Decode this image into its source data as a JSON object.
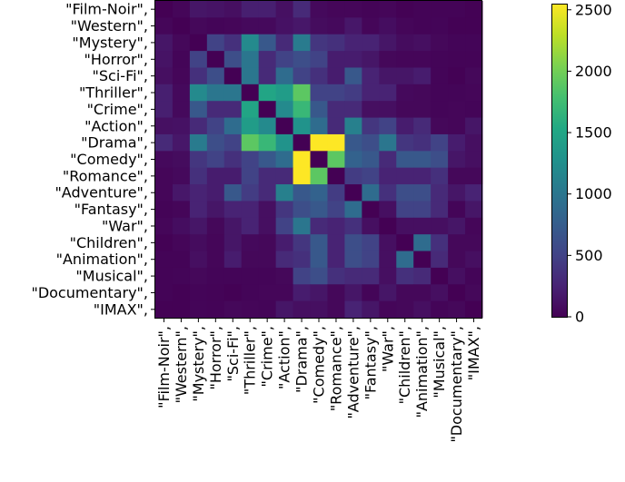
{
  "chart_data": {
    "type": "heatmap",
    "title": "",
    "xlabel": "",
    "ylabel": "",
    "categories": [
      "\"Film-Noir\",",
      "\"Western\",",
      "\"Mystery\",",
      "\"Horror\",",
      "\"Sci-Fi\",",
      "\"Thriller\",",
      "\"Crime\",",
      "\"Action\",",
      "\"Drama\",",
      "\"Comedy\",",
      "\"Romance\",",
      "\"Adventure\",",
      "\"Fantasy\",",
      "\"War\",",
      "\"Children\",",
      "\"Animation\",",
      "\"Musical\",",
      "\"Documentary\",",
      "\"IMAX\","
    ],
    "values": [
      [
        0,
        40,
        150,
        130,
        100,
        220,
        220,
        110,
        300,
        60,
        40,
        40,
        20,
        40,
        10,
        20,
        20,
        20,
        10
      ],
      [
        40,
        0,
        50,
        30,
        40,
        60,
        60,
        120,
        160,
        80,
        60,
        160,
        40,
        90,
        40,
        20,
        30,
        5,
        10
      ],
      [
        150,
        50,
        0,
        500,
        350,
        1200,
        700,
        300,
        1050,
        400,
        350,
        250,
        250,
        150,
        80,
        100,
        50,
        30,
        30
      ],
      [
        130,
        30,
        500,
        0,
        600,
        1000,
        300,
        500,
        600,
        500,
        200,
        200,
        150,
        50,
        40,
        40,
        30,
        20,
        20
      ],
      [
        100,
        40,
        350,
        600,
        0,
        1000,
        300,
        900,
        500,
        350,
        200,
        700,
        250,
        150,
        150,
        200,
        30,
        10,
        50
      ],
      [
        220,
        60,
        1200,
        1000,
        1000,
        0,
        1500,
        1400,
        1900,
        500,
        500,
        450,
        250,
        250,
        60,
        50,
        30,
        30,
        40
      ],
      [
        220,
        60,
        700,
        300,
        300,
        1500,
        0,
        1200,
        1700,
        700,
        300,
        300,
        100,
        100,
        50,
        50,
        30,
        40,
        30
      ],
      [
        110,
        120,
        300,
        500,
        900,
        1400,
        1200,
        0,
        1300,
        900,
        300,
        1100,
        400,
        500,
        200,
        300,
        50,
        40,
        150
      ],
      [
        300,
        160,
        1050,
        600,
        500,
        1900,
        1700,
        1300,
        0,
        2550,
        2550,
        700,
        600,
        1000,
        400,
        350,
        500,
        200,
        100
      ],
      [
        60,
        80,
        400,
        500,
        350,
        500,
        700,
        900,
        2550,
        0,
        1900,
        800,
        700,
        300,
        700,
        700,
        600,
        150,
        100
      ],
      [
        40,
        60,
        350,
        200,
        200,
        500,
        300,
        300,
        2550,
        1900,
        0,
        450,
        500,
        250,
        250,
        250,
        350,
        50,
        50
      ],
      [
        40,
        160,
        250,
        200,
        700,
        450,
        300,
        1100,
        700,
        800,
        450,
        0,
        900,
        350,
        600,
        600,
        300,
        150,
        250
      ],
      [
        20,
        40,
        250,
        150,
        250,
        250,
        100,
        400,
        600,
        700,
        500,
        900,
        0,
        100,
        500,
        500,
        300,
        30,
        150
      ],
      [
        40,
        90,
        150,
        50,
        150,
        250,
        100,
        500,
        1000,
        300,
        250,
        350,
        100,
        0,
        100,
        100,
        100,
        150,
        40
      ],
      [
        10,
        40,
        80,
        40,
        150,
        60,
        50,
        200,
        400,
        700,
        250,
        600,
        500,
        100,
        0,
        900,
        350,
        50,
        50
      ],
      [
        20,
        20,
        100,
        40,
        200,
        50,
        50,
        300,
        350,
        700,
        250,
        600,
        500,
        100,
        900,
        0,
        300,
        50,
        100
      ],
      [
        20,
        30,
        50,
        30,
        30,
        30,
        30,
        50,
        500,
        600,
        350,
        300,
        300,
        100,
        350,
        300,
        0,
        100,
        30
      ],
      [
        20,
        5,
        30,
        20,
        10,
        30,
        40,
        40,
        200,
        150,
        50,
        150,
        30,
        150,
        50,
        50,
        100,
        0,
        50
      ],
      [
        10,
        10,
        30,
        20,
        50,
        40,
        30,
        150,
        100,
        100,
        50,
        250,
        150,
        40,
        50,
        100,
        30,
        50,
        0
      ]
    ],
    "colorbar": {
      "min": 0,
      "max": 2550,
      "ticks": [
        "0",
        "500",
        "1000",
        "1500",
        "2000",
        "2500"
      ],
      "tick_values": [
        0,
        500,
        1000,
        1500,
        2000,
        2500
      ],
      "colormap": "viridis"
    },
    "grid": false
  }
}
